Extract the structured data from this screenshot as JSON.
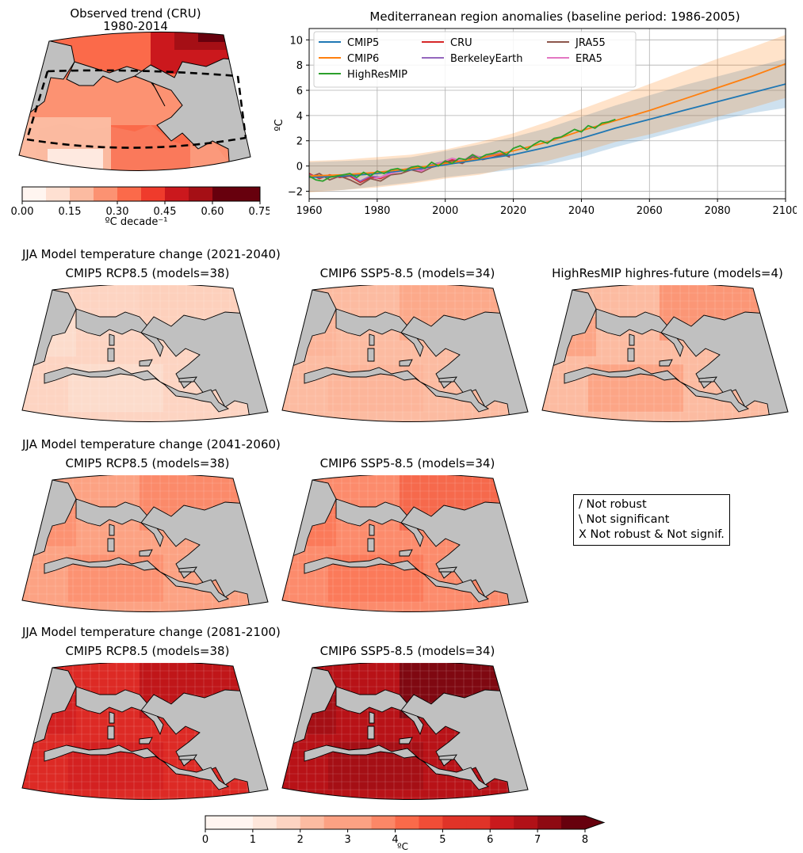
{
  "observed": {
    "title_line1": "Observed trend (CRU)",
    "title_line2": "1980-2014",
    "colorbar": {
      "ticks": [
        "0.00",
        "0.15",
        "0.30",
        "0.45",
        "0.60",
        "0.75"
      ],
      "label": "ºC decade⁻¹",
      "colors": [
        "#fff5f0",
        "#fee0d2",
        "#fcbba1",
        "#fc9272",
        "#fb6a4a",
        "#ef3b2c",
        "#cb181d",
        "#a50f15",
        "#67000d",
        "#67000d"
      ]
    }
  },
  "chart_data": {
    "type": "line",
    "title": "Mediterranean region anomalies (baseline period: 1986-2005)",
    "xlabel": "",
    "ylabel": "ºC",
    "xlim": [
      1960,
      2100
    ],
    "ylim": [
      -2.6,
      10.9
    ],
    "xticks": [
      1960,
      1980,
      2000,
      2020,
      2040,
      2060,
      2080,
      2100
    ],
    "yticks": [
      -2,
      0,
      2,
      4,
      6,
      8,
      10
    ],
    "grid": true,
    "legend_position": "top-left",
    "series": [
      {
        "name": "CMIP5",
        "color": "#1f77b4",
        "x": [
          1960,
          1970,
          1980,
          1990,
          2000,
          2010,
          2020,
          2030,
          2040,
          2050,
          2060,
          2070,
          2080,
          2090,
          2100
        ],
        "values": [
          -0.9,
          -0.8,
          -0.6,
          -0.3,
          0.1,
          0.5,
          0.9,
          1.5,
          2.2,
          3.0,
          3.7,
          4.4,
          5.1,
          5.8,
          6.5
        ],
        "band_low": [
          -2.0,
          -1.9,
          -1.6,
          -1.3,
          -0.9,
          -0.6,
          -0.3,
          0.1,
          0.7,
          1.5,
          2.2,
          2.9,
          3.6,
          4.2,
          4.6
        ],
        "band_high": [
          0.3,
          0.4,
          0.5,
          0.7,
          1.2,
          1.7,
          2.3,
          3.0,
          3.9,
          4.8,
          5.6,
          6.4,
          7.1,
          7.8,
          8.5
        ]
      },
      {
        "name": "CMIP6",
        "color": "#ff7f0e",
        "x": [
          1960,
          1970,
          1980,
          1990,
          2000,
          2010,
          2020,
          2030,
          2040,
          2050,
          2060,
          2070,
          2080,
          2090,
          2100
        ],
        "values": [
          -0.8,
          -0.7,
          -0.5,
          -0.2,
          0.2,
          0.6,
          1.2,
          1.9,
          2.8,
          3.6,
          4.4,
          5.3,
          6.2,
          7.1,
          8.1
        ],
        "band_low": [
          -2.1,
          -1.9,
          -1.7,
          -1.4,
          -1.0,
          -0.7,
          -0.1,
          0.4,
          1.1,
          1.9,
          2.5,
          3.2,
          3.9,
          4.6,
          5.4
        ],
        "band_high": [
          0.4,
          0.5,
          0.7,
          0.9,
          1.3,
          1.9,
          2.6,
          3.5,
          4.5,
          5.5,
          6.5,
          7.5,
          8.5,
          9.4,
          10.4
        ]
      },
      {
        "name": "HighResMIP",
        "color": "#2ca02c",
        "x": [
          1960,
          1962,
          1964,
          1966,
          1968,
          1970,
          1972,
          1974,
          1976,
          1978,
          1980,
          1982,
          1984,
          1986,
          1988,
          1990,
          1992,
          1994,
          1996,
          1998,
          2000,
          2002,
          2004,
          2006,
          2008,
          2010,
          2012,
          2014,
          2016,
          2018,
          2020,
          2022,
          2024,
          2026,
          2028,
          2030,
          2032,
          2034,
          2036,
          2038,
          2040,
          2042,
          2044,
          2046,
          2048,
          2050
        ],
        "values": [
          -0.8,
          -1.1,
          -1.2,
          -0.9,
          -0.8,
          -0.7,
          -0.6,
          -0.9,
          -0.5,
          -0.8,
          -0.4,
          -0.6,
          -0.3,
          -0.2,
          -0.4,
          -0.1,
          0.0,
          -0.2,
          0.3,
          0.0,
          0.4,
          0.2,
          0.6,
          0.5,
          0.9,
          0.6,
          0.9,
          1.0,
          1.2,
          0.9,
          1.4,
          1.6,
          1.3,
          1.7,
          2.0,
          1.8,
          2.2,
          2.3,
          2.6,
          2.9,
          2.7,
          3.2,
          3.0,
          3.4,
          3.5,
          3.7
        ]
      },
      {
        "name": "CRU",
        "color": "#d62728",
        "x": [
          1960,
          1963,
          1966,
          1969,
          1972,
          1975,
          1978,
          1981,
          1984,
          1987,
          1990,
          1993,
          1996,
          1999,
          2002,
          2005,
          2008,
          2011,
          2014,
          2017,
          2019
        ],
        "values": [
          -0.6,
          -1.0,
          -0.7,
          -0.9,
          -0.8,
          -1.3,
          -0.9,
          -1.0,
          -0.6,
          -0.3,
          -0.2,
          -0.4,
          0.0,
          0.2,
          0.5,
          0.3,
          0.9,
          0.6,
          0.8,
          1.0,
          0.8
        ]
      },
      {
        "name": "BerkeleyEarth",
        "color": "#9467bd",
        "x": [
          1960,
          1963,
          1966,
          1969,
          1972,
          1975,
          1978,
          1981,
          1984,
          1987,
          1990,
          1993,
          1996,
          1999,
          2002,
          2005,
          2008,
          2011,
          2014,
          2017,
          2019
        ],
        "values": [
          -0.7,
          -0.9,
          -0.8,
          -0.8,
          -0.7,
          -1.2,
          -0.8,
          -0.9,
          -0.5,
          -0.4,
          -0.1,
          -0.3,
          0.1,
          0.3,
          0.6,
          0.4,
          0.8,
          0.7,
          0.9,
          1.1,
          0.9
        ]
      },
      {
        "name": "JRA55",
        "color": "#8c564b",
        "x": [
          1960,
          1963,
          1966,
          1969,
          1972,
          1975,
          1978,
          1981,
          1984,
          1987,
          1990,
          1993,
          1996,
          1999,
          2002,
          2005,
          2008,
          2011,
          2014,
          2017,
          2019
        ],
        "values": [
          -0.9,
          -0.6,
          -1.1,
          -0.8,
          -1.1,
          -1.5,
          -1.0,
          -1.2,
          -0.7,
          -0.6,
          -0.3,
          -0.5,
          -0.1,
          0.1,
          0.4,
          0.2,
          0.7,
          0.5,
          0.7,
          0.9,
          0.7
        ]
      },
      {
        "name": "ERA5",
        "color": "#e377c2",
        "x": [
          1979,
          1981,
          1984,
          1987,
          1990,
          1993,
          1996,
          1999,
          2002,
          2005,
          2008,
          2011,
          2014,
          2017,
          2019
        ],
        "values": [
          -1.0,
          -0.9,
          -0.6,
          -0.4,
          -0.2,
          -0.4,
          0.0,
          0.3,
          0.6,
          0.4,
          0.9,
          0.6,
          0.8,
          1.1,
          0.9
        ]
      }
    ]
  },
  "rows": [
    {
      "heading": "JJA Model temperature change (2021-2040)",
      "maps": [
        {
          "title": "CMIP5 RCP8.5 (models=38)",
          "sea_color": "#fdd4c2",
          "land_color": "#fcdccc",
          "warm_color": "#fdd0bc"
        },
        {
          "title": "CMIP6 SSP5-8.5 (models=34)",
          "sea_color": "#fcbba1",
          "land_color": "#fcb59a",
          "warm_color": "#fca98a"
        },
        {
          "title": "HighResMIP highres-future (models=4)",
          "sea_color": "#fcbba1",
          "land_color": "#fca586",
          "warm_color": "#fb9676"
        }
      ]
    },
    {
      "heading": "JJA Model temperature change (2041-2060)",
      "maps": [
        {
          "title": "CMIP5 RCP8.5 (models=38)",
          "sea_color": "#fca283",
          "land_color": "#fc9272",
          "warm_color": "#fb8a6a"
        },
        {
          "title": "CMIP6 SSP5-8.5 (models=34)",
          "sea_color": "#fc8b6c",
          "land_color": "#fb7a5a",
          "warm_color": "#f6694c"
        }
      ]
    },
    {
      "heading": "JJA Model temperature change (2081-2100)",
      "maps": [
        {
          "title": "CMIP5 RCP8.5 (models=38)",
          "sea_color": "#dd2a25",
          "land_color": "#d42121",
          "warm_color": "#c01619"
        },
        {
          "title": "CMIP6 SSP5-8.5 (models=34)",
          "sea_color": "#b81217",
          "land_color": "#a50f15",
          "warm_color": "#7f0811"
        }
      ]
    }
  ],
  "hatch_legend": [
    "/ Not robust",
    "\\ Not significant",
    "X Not robust & Not signif."
  ],
  "bottom_colorbar": {
    "ticks": [
      "0",
      "1",
      "2",
      "3",
      "4",
      "5",
      "6",
      "7",
      "8"
    ],
    "label": "ºC",
    "colors": [
      "#fff5f0",
      "#fee6da",
      "#fdd4c2",
      "#fcbba1",
      "#fca183",
      "#fc8767",
      "#fa6a4a",
      "#f14d37",
      "#e03328",
      "#c9191d",
      "#b11117",
      "#8e0912",
      "#67000d"
    ]
  },
  "colors": {
    "land": "#c0c0c0",
    "grid": "#b0b0b0"
  }
}
